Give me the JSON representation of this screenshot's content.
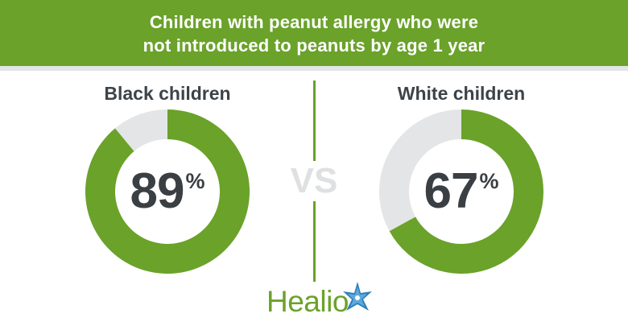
{
  "title": {
    "line1": "Children with peanut allergy who were",
    "line2": "not introduced to peanuts by age 1 year"
  },
  "vs_label": "VS",
  "logo_text": "Healio",
  "colors": {
    "accent_green": "#6aa22a",
    "remainder_gray": "#e4e5e6",
    "text_dark": "#3a3f44",
    "vs_gray": "#dfe0e1"
  },
  "chart_data": [
    {
      "type": "pie",
      "variant": "donut",
      "label": "Black children",
      "value": 89,
      "value_label": "89",
      "unit": "%",
      "slices": [
        {
          "name": "not introduced",
          "value": 89,
          "color": "#6aa22a"
        },
        {
          "name": "remainder",
          "value": 11,
          "color": "#e4e5e6"
        }
      ]
    },
    {
      "type": "pie",
      "variant": "donut",
      "label": "White children",
      "value": 67,
      "value_label": "67",
      "unit": "%",
      "slices": [
        {
          "name": "not introduced",
          "value": 67,
          "color": "#6aa22a"
        },
        {
          "name": "remainder",
          "value": 33,
          "color": "#e4e5e6"
        }
      ]
    }
  ]
}
